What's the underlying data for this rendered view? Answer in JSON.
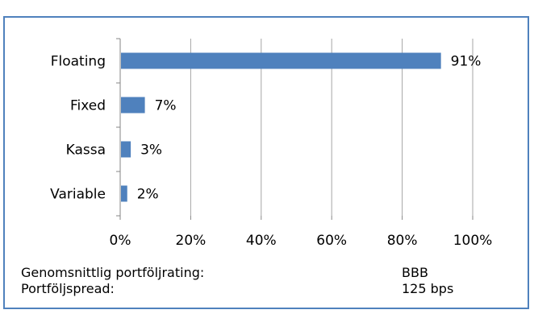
{
  "header": {
    "title_partial": ""
  },
  "chart_data": {
    "type": "bar",
    "orientation": "horizontal",
    "categories": [
      "Floating",
      "Fixed",
      "Kassa",
      "Variable"
    ],
    "values": [
      91,
      7,
      3,
      2
    ],
    "data_labels": [
      "91%",
      "7%",
      "3%",
      "2%"
    ],
    "xlim": [
      0,
      100
    ],
    "x_ticks": [
      "0%",
      "20%",
      "40%",
      "60%",
      "80%",
      "100%"
    ],
    "grid": true,
    "bar_color": "#4f81bd",
    "title": "",
    "xlabel": "",
    "ylabel": ""
  },
  "summary": [
    {
      "label": "Genomsnittlig portföljrating:",
      "value": "BBB"
    },
    {
      "label": "Portföljspread:",
      "value": "125 bps"
    }
  ]
}
